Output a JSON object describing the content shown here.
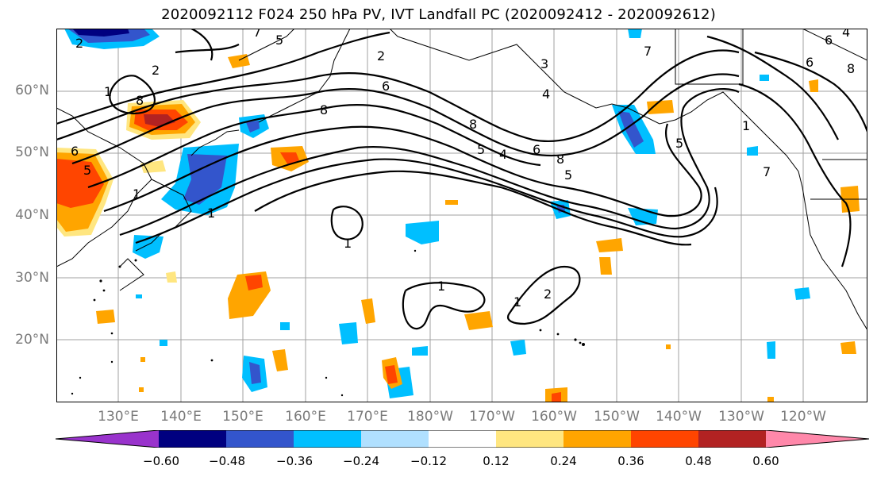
{
  "title": "2020092112 F024 250 hPa PV, IVT Landfall PC (2020092412 - 2020092612)",
  "lat_labels": [
    "60°N",
    "50°N",
    "40°N",
    "30°N",
    "20°N"
  ],
  "lon_labels": [
    "130°E",
    "140°E",
    "150°E",
    "160°E",
    "170°E",
    "180°W",
    "170°W",
    "160°W",
    "150°W",
    "140°W",
    "130°W",
    "120°W"
  ],
  "contour_labels": [
    "2",
    "2",
    "1",
    "5",
    "7",
    "2",
    "6",
    "3",
    "4",
    "8",
    "5",
    "8",
    "6",
    "4",
    "5",
    "1",
    "1",
    "1",
    "1",
    "2",
    "7",
    "6",
    "8",
    "1",
    "6",
    "4",
    "5",
    "8",
    "7",
    "6",
    "5",
    "8",
    "1"
  ],
  "colorbar": {
    "colors": [
      "#9933cc",
      "#000080",
      "#3355cc",
      "#00bfff",
      "#b0e0ff",
      "#ffffff",
      "#ffe680",
      "#ffa500",
      "#ff4500",
      "#b22222",
      "#ff88aa"
    ],
    "tick_labels": [
      "−0.60",
      "−0.48",
      "−0.36",
      "−0.24",
      "−0.12",
      "0.12",
      "0.24",
      "0.36",
      "0.48",
      "0.60"
    ]
  },
  "colors": {
    "positive_shades": [
      "#ffe680",
      "#ffa500",
      "#ff4500"
    ],
    "negative_shades": [
      "#b0e0ff",
      "#00bfff",
      "#3355cc",
      "#000080"
    ],
    "contour": "#000000",
    "grid": "#999999",
    "coast": "#000000"
  }
}
